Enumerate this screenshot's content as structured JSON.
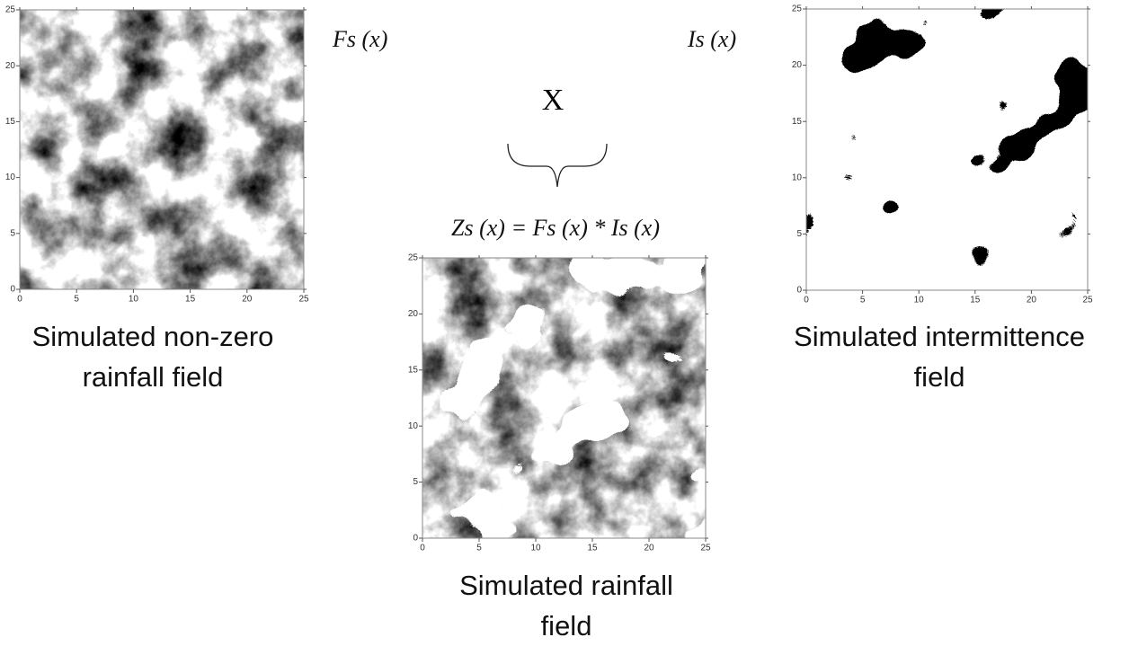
{
  "operator": "X",
  "equation": "Zs (x) = Fs (x) * Is (x)",
  "panels": [
    {
      "symbol": "Fs (x)",
      "caption": [
        "Simulated non-zero",
        "rainfall field"
      ],
      "xlim": [
        0,
        25
      ],
      "ylim": [
        0,
        25
      ],
      "xticks": [
        0,
        5,
        10,
        15,
        20,
        25
      ],
      "yticks": [
        0,
        5,
        10,
        15,
        20,
        25
      ]
    },
    {
      "caption": [
        "Simulated rainfall",
        "field"
      ],
      "xlim": [
        0,
        25
      ],
      "ylim": [
        0,
        25
      ],
      "xticks": [
        0,
        5,
        10,
        15,
        20,
        25
      ],
      "yticks": [
        0,
        5,
        10,
        15,
        20,
        25
      ]
    },
    {
      "symbol": "Is (x)",
      "caption": [
        "Simulated intermittence",
        "field"
      ],
      "xlim": [
        0,
        25
      ],
      "ylim": [
        0,
        25
      ],
      "xticks": [
        0,
        5,
        10,
        15,
        20,
        25
      ],
      "yticks": [
        0,
        5,
        10,
        15,
        20,
        25
      ]
    }
  ]
}
